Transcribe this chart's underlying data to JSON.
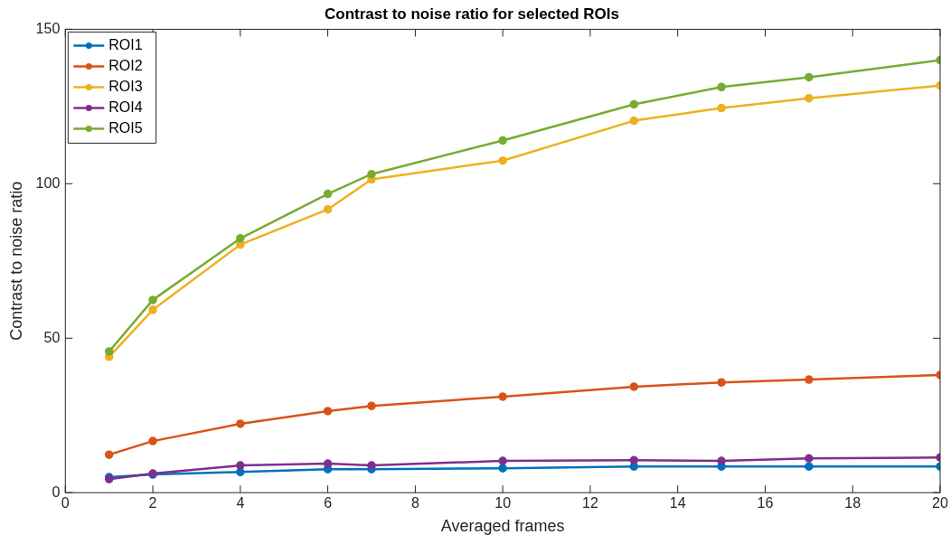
{
  "chart_data": {
    "type": "line",
    "title": "Contrast to noise ratio for selected ROIs",
    "xlabel": "Averaged frames",
    "ylabel": "Contrast to noise ratio",
    "x": [
      1,
      2,
      4,
      6,
      7,
      10,
      13,
      15,
      17,
      20
    ],
    "series": [
      {
        "name": "ROI1",
        "color": "#0072bd",
        "values": [
          5.0,
          5.9,
          6.7,
          7.6,
          7.6,
          7.9,
          8.5,
          8.5,
          8.5,
          8.5
        ]
      },
      {
        "name": "ROI2",
        "color": "#d95319",
        "values": [
          12.3,
          16.7,
          22.3,
          26.4,
          28.1,
          31.1,
          34.3,
          35.7,
          36.6,
          38.1
        ]
      },
      {
        "name": "ROI3",
        "color": "#edb120",
        "values": [
          44.0,
          59.2,
          80.3,
          91.7,
          101.4,
          107.5,
          120.4,
          124.5,
          127.7,
          131.8
        ]
      },
      {
        "name": "ROI4",
        "color": "#7e2f8e",
        "values": [
          4.4,
          6.2,
          8.8,
          9.4,
          8.8,
          10.3,
          10.5,
          10.3,
          11.1,
          11.4
        ]
      },
      {
        "name": "ROI5",
        "color": "#77ac30",
        "values": [
          45.7,
          62.4,
          82.3,
          96.7,
          103.1,
          114.0,
          125.7,
          131.3,
          134.5,
          140.0
        ]
      }
    ],
    "xlim": [
      0,
      20
    ],
    "xticks": [
      0,
      2,
      4,
      6,
      8,
      10,
      12,
      14,
      16,
      18,
      20
    ],
    "ylim": [
      0,
      150
    ],
    "yticks": [
      0,
      50,
      100,
      150
    ],
    "grid": false,
    "legend": "top left",
    "marker": "circle",
    "line_style": "solid"
  }
}
